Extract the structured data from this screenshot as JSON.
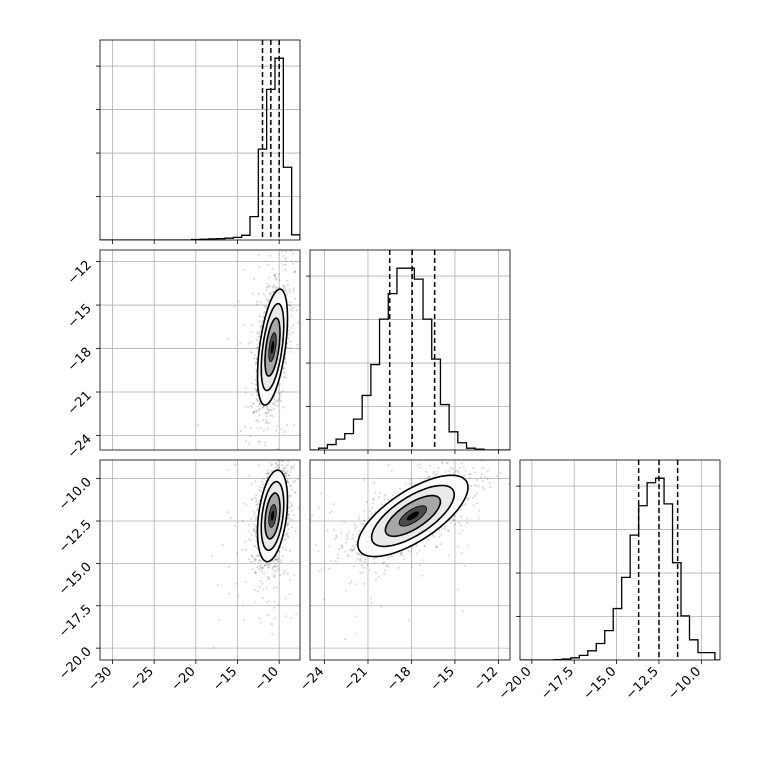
{
  "chart_data": {
    "type": "corner",
    "title": "",
    "parameters": [
      {
        "label": "",
        "range": [
          -31.5,
          -7.5
        ],
        "ticks": [
          -30,
          -25,
          -20,
          -15,
          -10
        ],
        "tick_labels": [
          "−30",
          "−25",
          "−20",
          "−15",
          "−10"
        ]
      },
      {
        "label": "",
        "range": [
          -25.0,
          -11.2
        ],
        "ticks": [
          -24,
          -21,
          -18,
          -15,
          -12
        ],
        "tick_labels": [
          "−24",
          "−21",
          "−18",
          "−15",
          "−12"
        ]
      },
      {
        "label": "",
        "range": [
          -20.7,
          -8.9
        ],
        "ticks": [
          -20.0,
          -17.5,
          -15.0,
          -12.5,
          -10.0
        ],
        "tick_labels": [
          "−20.0",
          "−17.5",
          "−15.0",
          "−12.5",
          "−10.0"
        ]
      }
    ],
    "quantiles": [
      [
        -12.0,
        -11.0,
        -10.0
      ],
      [
        -19.5,
        -17.95,
        -16.4
      ],
      [
        -13.7,
        -12.5,
        -11.4
      ]
    ],
    "histograms": [
      {
        "bin_edges": [
          -31.5,
          -30.5,
          -29.5,
          -28.5,
          -27.5,
          -26.5,
          -25.5,
          -24.5,
          -23.5,
          -22.5,
          -21.5,
          -20.5,
          -19.5,
          -18.5,
          -17.5,
          -16.5,
          -15.5,
          -14.5,
          -13.5,
          -12.5,
          -11.5,
          -10.5,
          -9.5,
          -8.5,
          -7.5
        ],
        "counts": [
          0,
          0,
          0,
          0,
          0,
          0,
          0,
          0,
          0,
          0,
          0,
          2,
          3,
          4,
          5,
          7,
          10,
          18,
          90,
          350,
          580,
          700,
          280,
          20
        ]
      },
      {
        "bin_edges": [
          -25.0,
          -24.4,
          -23.8,
          -23.2,
          -22.6,
          -22.0,
          -21.4,
          -20.8,
          -20.2,
          -19.6,
          -19.0,
          -18.4,
          -17.8,
          -17.2,
          -16.6,
          -16.0,
          -15.4,
          -14.8,
          -14.2,
          -13.6,
          -13.0,
          -12.4,
          -11.8,
          -11.2
        ],
        "counts": [
          0,
          10,
          30,
          60,
          90,
          170,
          300,
          470,
          720,
          860,
          1000,
          1000,
          940,
          720,
          500,
          250,
          100,
          40,
          10,
          5,
          0,
          0,
          0
        ]
      },
      {
        "bin_edges": [
          -20.7,
          -20.2,
          -19.7,
          -19.2,
          -18.7,
          -18.2,
          -17.7,
          -17.2,
          -16.7,
          -16.2,
          -15.7,
          -15.2,
          -14.7,
          -14.2,
          -13.7,
          -13.2,
          -12.7,
          -12.2,
          -11.7,
          -11.2,
          -10.7,
          -10.2,
          -9.7,
          -9.2,
          -8.9
        ],
        "counts": [
          0,
          0,
          0,
          0,
          2,
          5,
          12,
          25,
          50,
          90,
          160,
          280,
          450,
          680,
          840,
          965,
          990,
          850,
          530,
          240,
          110,
          40,
          40,
          0
        ]
      }
    ],
    "contours_2d": [
      {
        "x_param": 0,
        "y_param": 1,
        "center": [
          -10.8,
          -17.9
        ],
        "sigma": [
          0.9,
          2.0
        ],
        "correlation": 0.5
      },
      {
        "x_param": 0,
        "y_param": 2,
        "center": [
          -10.8,
          -12.2
        ],
        "sigma": [
          0.9,
          1.35
        ],
        "correlation": 0.35
      },
      {
        "x_param": 1,
        "y_param": 2,
        "center": [
          -17.9,
          -12.2
        ],
        "sigma": [
          1.9,
          1.2
        ],
        "correlation": 0.7
      }
    ],
    "grid": true,
    "legend": "none"
  }
}
